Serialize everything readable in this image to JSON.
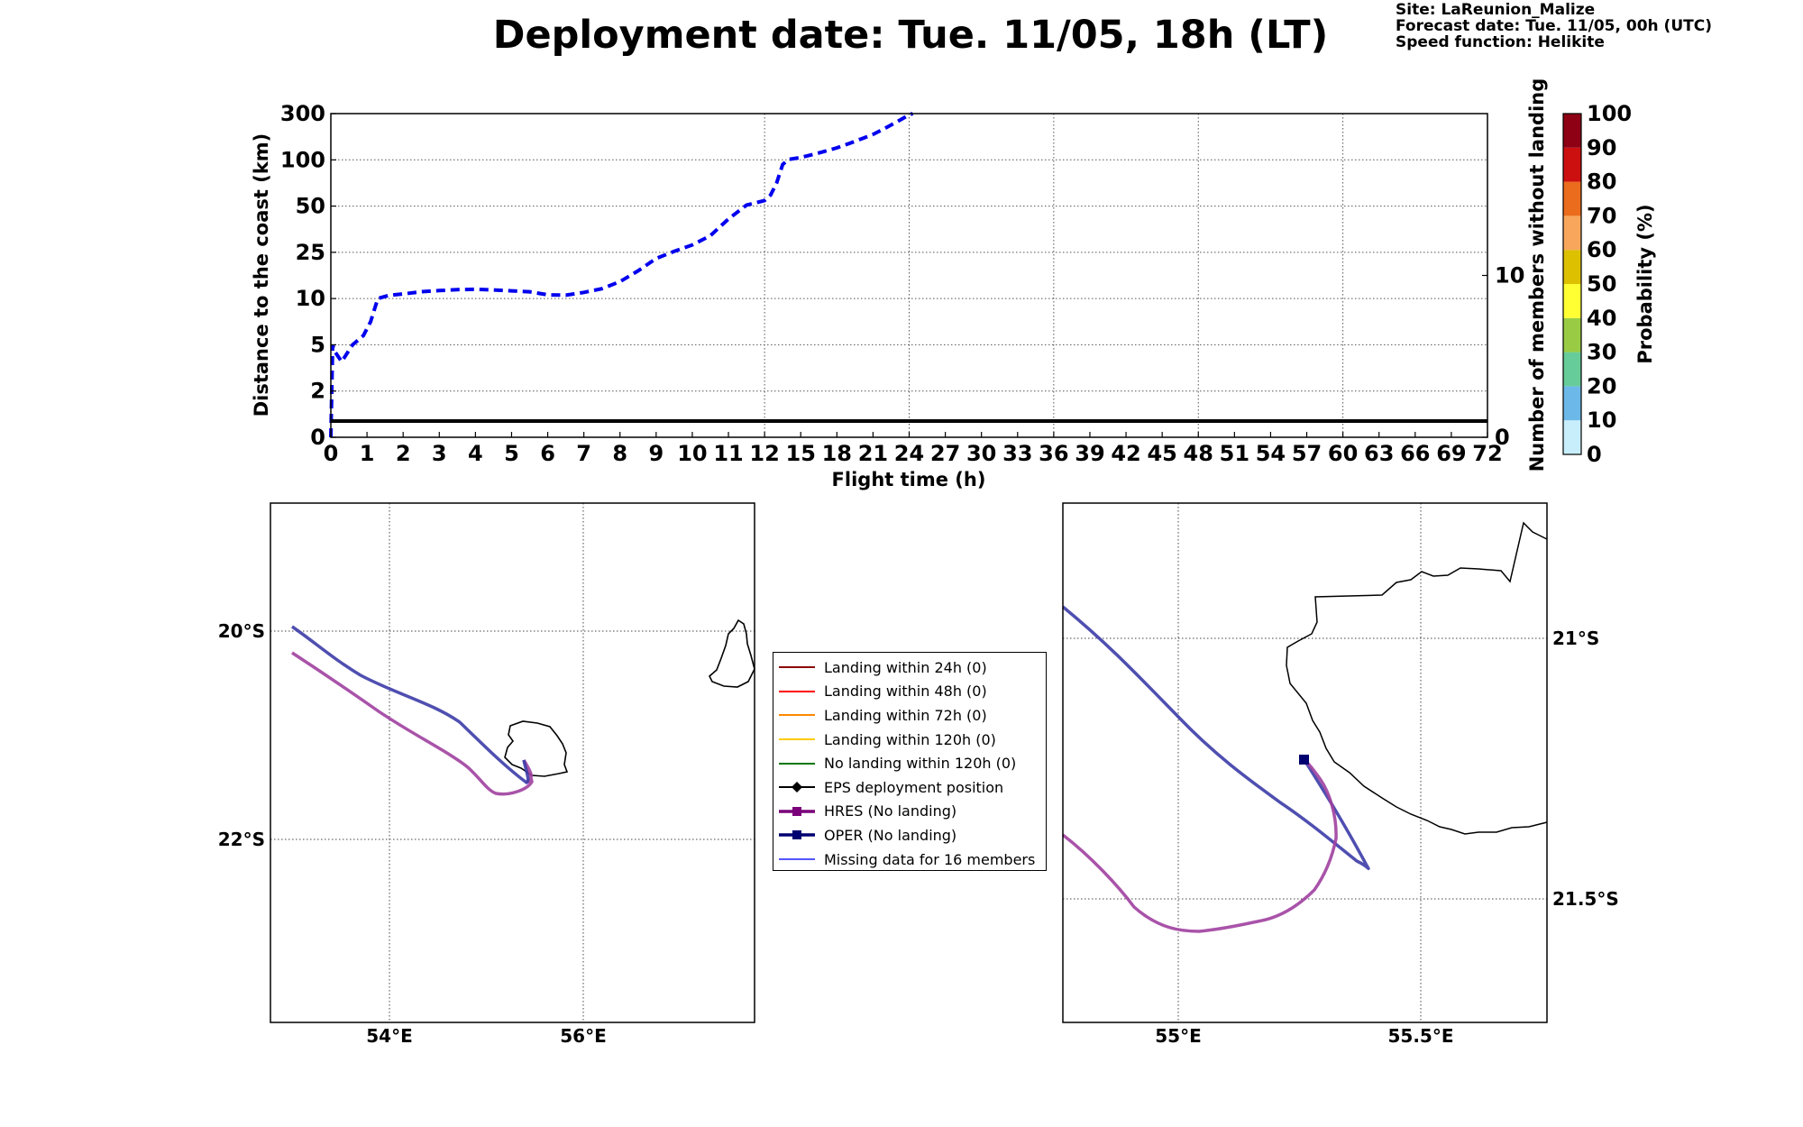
{
  "header": {
    "title": "Deployment date: Tue. 11/05, 18h (LT)",
    "site": "Site: LaReunion_Malize",
    "forecast_date": "Forecast date: Tue. 11/05, 00h (UTC)",
    "speed_function": "Speed function: Helikite"
  },
  "colors": {
    "distance_line": "#0000ee",
    "members_line": "#000000",
    "hres": "#a040a0",
    "oper": "#3c3ca8",
    "coast": "#000000"
  },
  "chart_data": [
    {
      "type": "line",
      "title": "",
      "xlabel": "Flight time (h)",
      "ylabel": "Distance to the coast (km)",
      "y2label": "Number of members without landing",
      "x_ticks": [
        "0",
        "1",
        "2",
        "3",
        "4",
        "5",
        "6",
        "7",
        "8",
        "9",
        "10",
        "11",
        "12",
        "15",
        "18",
        "21",
        "24",
        "27",
        "30",
        "33",
        "36",
        "39",
        "42",
        "45",
        "48",
        "51",
        "54",
        "57",
        "60",
        "63",
        "66",
        "69",
        "72"
      ],
      "y_ticks": [
        "0",
        "2",
        "5",
        "10",
        "25",
        "50",
        "100",
        "300"
      ],
      "y2_ticks": [
        "0",
        "10"
      ],
      "y2lim": [
        0,
        20
      ],
      "grid": true,
      "series": [
        {
          "style": "dashed",
          "x": [
            0,
            0.05,
            0.1,
            0.3,
            0.6,
            0.9,
            1.1,
            1.3,
            1.6,
            2,
            2.5,
            3,
            3.5,
            4,
            4.5,
            5,
            5.5,
            6,
            6.5,
            7,
            7.5,
            8,
            8.5,
            9,
            9.5,
            10,
            10.5,
            11,
            11.5,
            12,
            12.5,
            13,
            13.5,
            14,
            15,
            16,
            17,
            18,
            19,
            20,
            21,
            22,
            23,
            24,
            24.3
          ],
          "y": [
            0,
            5,
            4.6,
            3.9,
            5,
            6,
            7.5,
            10,
            11,
            11.5,
            12.2,
            12.6,
            12.9,
            13,
            12.8,
            12.5,
            12.2,
            11.2,
            11.1,
            12,
            13.2,
            15.5,
            19,
            23,
            25.5,
            29,
            34,
            43,
            51,
            56,
            62,
            75,
            95,
            102,
            110,
            123,
            137,
            152,
            170,
            190,
            210,
            237,
            265,
            295,
            300
          ]
        },
        {
          "style": "solid",
          "axis": "y2",
          "x": [
            0,
            72
          ],
          "y": [
            1,
            1
          ]
        }
      ]
    },
    {
      "type": "heatmap",
      "colorbar_label": "Probability (%)",
      "ticks": [
        "0",
        "10",
        "20",
        "30",
        "40",
        "50",
        "60",
        "70",
        "80",
        "90",
        "100"
      ],
      "colors": [
        "#c8eefc",
        "#6cb8e8",
        "#66cc99",
        "#99cc44",
        "#ffff33",
        "#ddc000",
        "#f7a65c",
        "#ea6c1c",
        "#cc1010",
        "#8e0014"
      ]
    },
    {
      "type": "map",
      "lon_ticks": [
        "54°E",
        "56°E"
      ],
      "lat_ticks": [
        "20°S",
        "22°S"
      ]
    },
    {
      "type": "map",
      "lon_ticks": [
        "55°E",
        "55.5°E"
      ],
      "lat_ticks": [
        "21°S",
        "21.5°S"
      ]
    }
  ],
  "legend": {
    "items": [
      {
        "label": "Landing within 24h (0)",
        "color": "#8b0000",
        "marker": "none"
      },
      {
        "label": "Landing within 48h (0)",
        "color": "#ff0000",
        "marker": "none"
      },
      {
        "label": "Landing within 72h (0)",
        "color": "#ff8800",
        "marker": "none"
      },
      {
        "label": "Landing within 120h (0)",
        "color": "#ffcc00",
        "marker": "none"
      },
      {
        "label": "No landing within 120h (0)",
        "color": "#007700",
        "marker": "none"
      },
      {
        "label": "EPS deployment position",
        "color": "#000000",
        "marker": "diamond"
      },
      {
        "label": "HRES (No landing)",
        "color": "#7a007a",
        "marker": "square"
      },
      {
        "label": "OPER (No landing)",
        "color": "#000070",
        "marker": "square"
      },
      {
        "label": "Missing data for 16 members",
        "color": "#5555ff",
        "marker": "none"
      }
    ]
  }
}
